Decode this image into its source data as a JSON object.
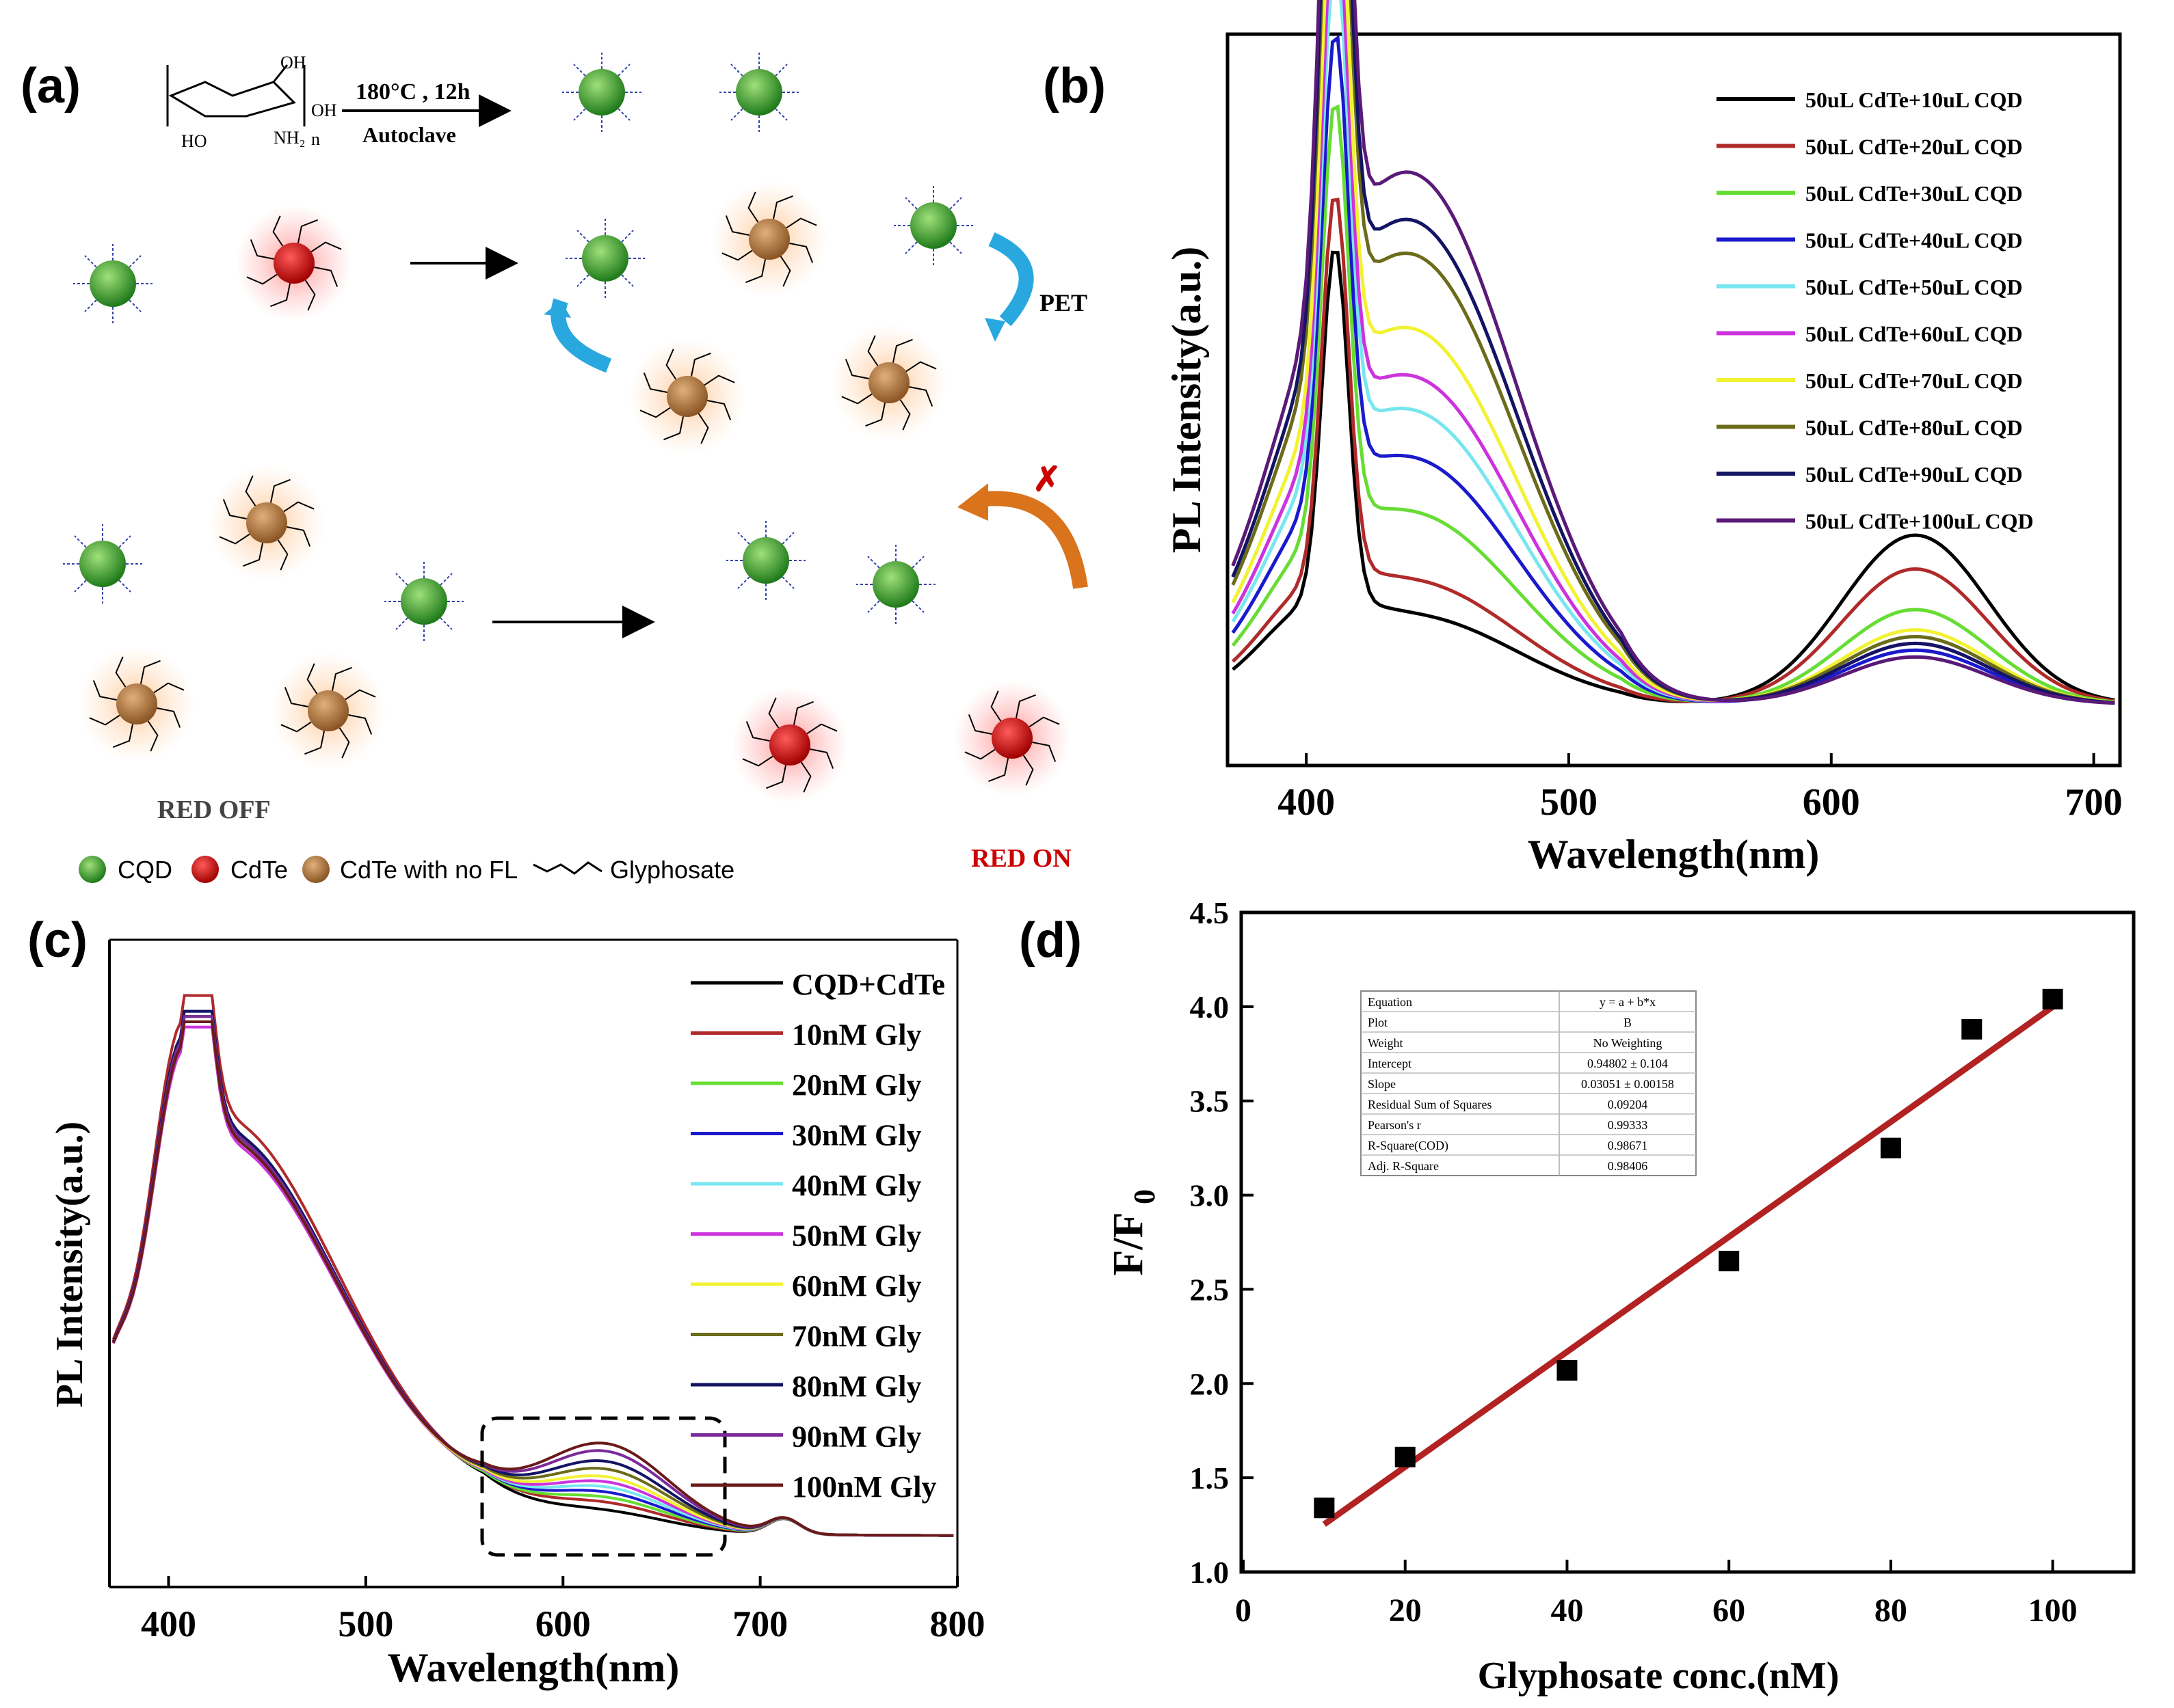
{
  "panel_labels": {
    "a": "(a)",
    "b": "(b)",
    "c": "(c)",
    "d": "(d)"
  },
  "scheme": {
    "reaction_temp": "180°C , 12h",
    "reaction_vessel": "Autoclave",
    "chitosan_n": "n",
    "pet_label": "PET",
    "red_off": "RED OFF",
    "red_on": "RED ON",
    "legend": {
      "cqd": "CQD",
      "cdte": "CdTe",
      "cdte_nofl": "CdTe with no FL",
      "glyphosate": "Glyphosate"
    },
    "colors": {
      "cqd": "#3c9a2a",
      "cdte": "#cc1111",
      "cdte_nofl": "#a8703a",
      "arrow_blue": "#29a8e0",
      "arrow_orange": "#d9731c"
    }
  },
  "chart_data": [
    {
      "panel": "b",
      "type": "line",
      "title": "",
      "xlabel": "Wavelength(nm)",
      "ylabel": "PL Intensity(a.u.)",
      "xlim": [
        370,
        710
      ],
      "ylim": [
        0,
        1
      ],
      "xticks": [
        400,
        500,
        600,
        700
      ],
      "series": [
        {
          "name": "50uL CdTe+10uL CQD",
          "color": "#000000",
          "peak1": 0.52,
          "broad1": 0.13,
          "broad2": 0.25
        },
        {
          "name": "50uL CdTe+20uL CQD",
          "color": "#b02a2a",
          "peak1": 0.56,
          "broad1": 0.18,
          "broad2": 0.2
        },
        {
          "name": "50uL CdTe+30uL CQD",
          "color": "#66dd33",
          "peak1": 0.62,
          "broad1": 0.28,
          "broad2": 0.14
        },
        {
          "name": "50uL CdTe+40uL CQD",
          "color": "#1a1acc",
          "peak1": 0.66,
          "broad1": 0.36,
          "broad2": 0.08
        },
        {
          "name": "50uL CdTe+50uL CQD",
          "color": "#77e6f0",
          "peak1": 0.72,
          "broad1": 0.43,
          "broad2": 0.1
        },
        {
          "name": "50uL CdTe+60uL CQD",
          "color": "#cc33dd",
          "peak1": 0.76,
          "broad1": 0.48,
          "broad2": 0.09
        },
        {
          "name": "50uL CdTe+70uL CQD",
          "color": "#f2f233",
          "peak1": 0.81,
          "broad1": 0.55,
          "broad2": 0.11
        },
        {
          "name": "50uL CdTe+80uL CQD",
          "color": "#6b6b1a",
          "peak1": 0.88,
          "broad1": 0.66,
          "broad2": 0.1
        },
        {
          "name": "50uL CdTe+90uL CQD",
          "color": "#141464",
          "peak1": 0.92,
          "broad1": 0.71,
          "broad2": 0.09
        },
        {
          "name": "50uL CdTe+100uL CQD",
          "color": "#5a1a78",
          "peak1": 0.96,
          "broad1": 0.78,
          "broad2": 0.07
        }
      ]
    },
    {
      "panel": "c",
      "type": "line",
      "title": "",
      "xlabel": "Wavelength(nm)",
      "ylabel": "PL Intensity(a.u.)",
      "xlim": [
        370,
        800
      ],
      "ylim": [
        0,
        1
      ],
      "xticks": [
        400,
        500,
        600,
        700,
        800
      ],
      "series": [
        {
          "name": "CQD+CdTe",
          "color": "#000000",
          "peak1": 0.93,
          "broad2": 0.03
        },
        {
          "name": "10nM Gly",
          "color": "#b02a2a",
          "peak1": 0.97,
          "broad2": 0.045
        },
        {
          "name": "20nM Gly",
          "color": "#66dd33",
          "peak1": 0.92,
          "broad2": 0.055
        },
        {
          "name": "30nM Gly",
          "color": "#1a1acc",
          "peak1": 0.94,
          "broad2": 0.065
        },
        {
          "name": "40nM Gly",
          "color": "#77e6f0",
          "peak1": 0.92,
          "broad2": 0.075
        },
        {
          "name": "50nM Gly",
          "color": "#cc33dd",
          "peak1": 0.91,
          "broad2": 0.085
        },
        {
          "name": "60nM Gly",
          "color": "#f2f233",
          "peak1": 0.92,
          "broad2": 0.095
        },
        {
          "name": "70nM Gly",
          "color": "#6b6b1a",
          "peak1": 0.93,
          "broad2": 0.11
        },
        {
          "name": "80nM Gly",
          "color": "#141464",
          "peak1": 0.94,
          "broad2": 0.125
        },
        {
          "name": "90nM Gly",
          "color": "#7a2a9a",
          "peak1": 0.93,
          "broad2": 0.145
        },
        {
          "name": "100nM Gly",
          "color": "#6a1a1a",
          "peak1": 0.92,
          "broad2": 0.16
        }
      ]
    },
    {
      "panel": "d",
      "type": "scatter",
      "title": "",
      "xlabel": "Glyphosate conc.(nM)",
      "ylabel": "F/F",
      "ylabel_sub": "0",
      "xlim": [
        0,
        110
      ],
      "ylim": [
        1.0,
        4.5
      ],
      "xticks": [
        0,
        20,
        40,
        60,
        80,
        100
      ],
      "yticks": [
        1.0,
        1.5,
        2.0,
        2.5,
        3.0,
        3.5,
        4.0,
        4.5
      ],
      "x": [
        10,
        20,
        40,
        60,
        80,
        90,
        100
      ],
      "y": [
        1.34,
        1.61,
        2.07,
        2.65,
        3.25,
        3.88,
        4.04
      ],
      "fit": {
        "intercept": 0.94802,
        "slope": 0.03051,
        "color": "#b22222"
      },
      "fit_table": [
        [
          "Equation",
          "y = a + b*x"
        ],
        [
          "Plot",
          "B"
        ],
        [
          "Weight",
          "No Weighting"
        ],
        [
          "Intercept",
          "0.94802 ± 0.104"
        ],
        [
          "Slope",
          "0.03051 ± 0.00158"
        ],
        [
          "Residual Sum of Squares",
          "0.09204"
        ],
        [
          "Pearson's r",
          "0.99333"
        ],
        [
          "R-Square(COD)",
          "0.98671"
        ],
        [
          "Adj. R-Square",
          "0.98406"
        ]
      ]
    }
  ]
}
